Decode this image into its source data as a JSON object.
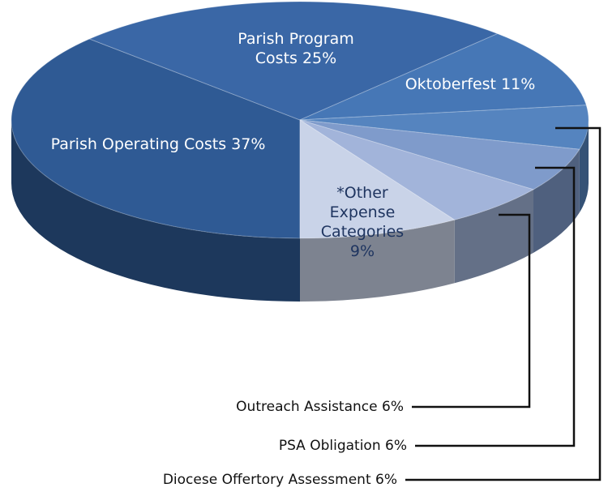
{
  "chart_data": {
    "type": "pie",
    "categories": [
      "Parish Operating Costs",
      "Parish Program Costs",
      "Oktoberfest",
      "Diocese Offertory Assessment",
      "PSA Obligation",
      "Outreach Assistance",
      "*Other Expense Categories"
    ],
    "values": [
      37,
      25,
      11,
      6,
      6,
      6,
      9
    ],
    "value_labels": [
      "37%",
      "25%",
      "11%",
      "6%",
      "6%",
      "6%",
      "9%"
    ],
    "colors": [
      "#2f5a94",
      "#3a67a6",
      "#4677b6",
      "#5584bf",
      "#7f9bcb",
      "#a2b4da",
      "#c9d3e8"
    ]
  }
}
